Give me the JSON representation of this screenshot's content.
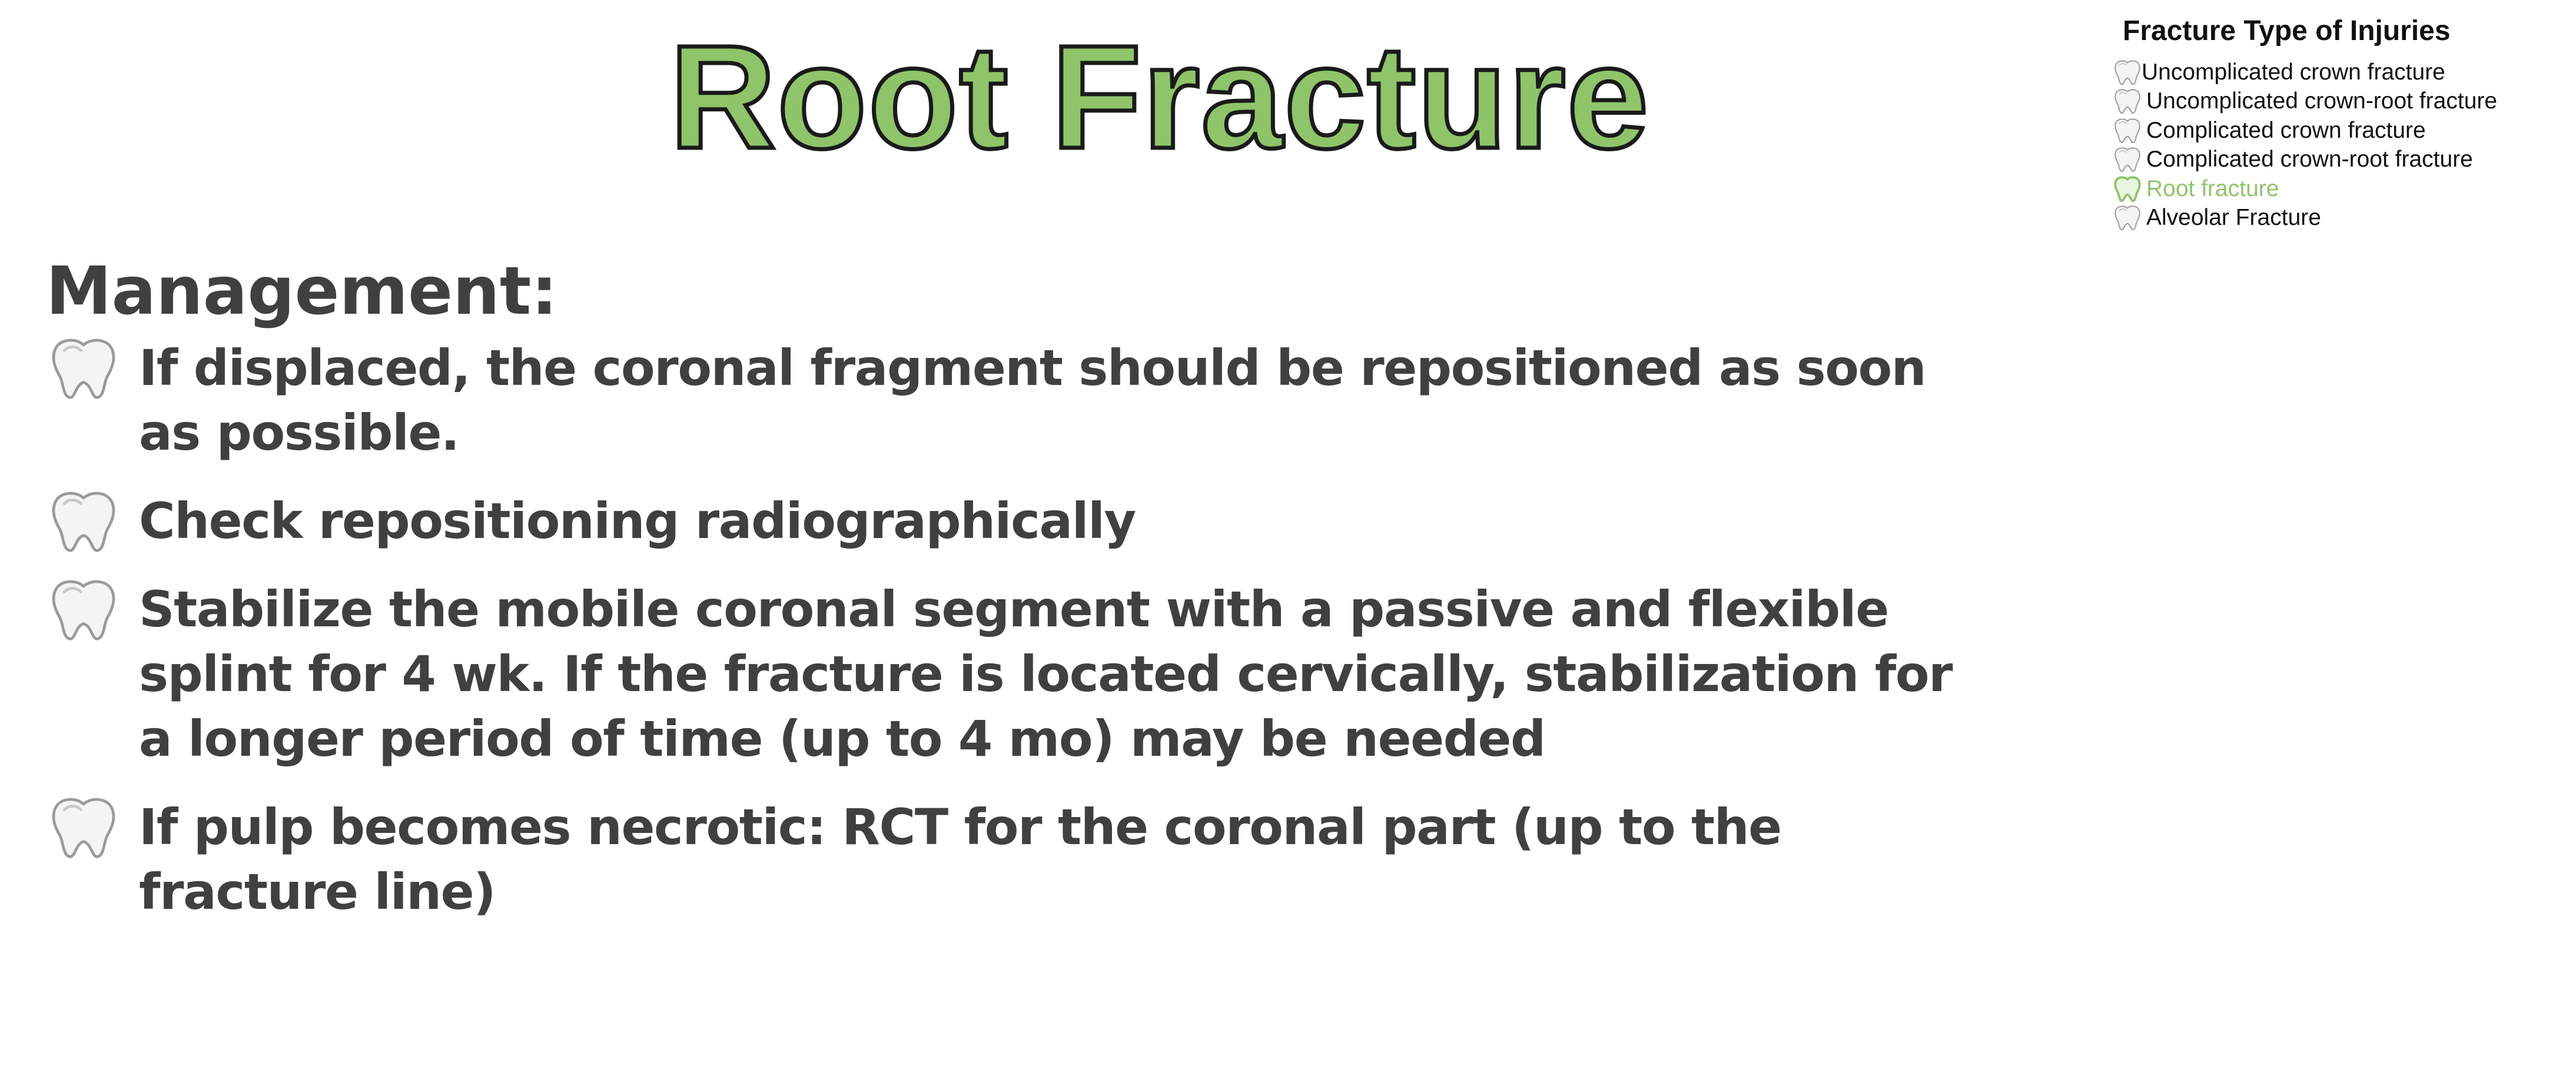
{
  "title": "Root Fracture",
  "legend": {
    "title": "Fracture Type of Injuries",
    "items": [
      {
        "label": "Uncomplicated crown fracture",
        "icon": "tooth-icon",
        "active": false
      },
      {
        "label": "Uncomplicated crown-root fracture",
        "icon": "tooth-icon",
        "active": false
      },
      {
        "label": "Complicated crown fracture",
        "icon": "tooth-icon",
        "active": false
      },
      {
        "label": "Complicated crown-root fracture",
        "icon": "tooth-icon",
        "active": false
      },
      {
        "label": "Root fracture",
        "icon": "tooth-icon",
        "active": true
      },
      {
        "label": "Alveolar Fracture",
        "icon": "tooth-icon",
        "active": false
      }
    ]
  },
  "management": {
    "heading": "Management:",
    "bullets": [
      "If displaced, the coronal fragment should be repositioned as soon as possible.",
      "Check repositioning radiographically",
      "Stabilize the mobile coronal segment with a passive and flexible splint for 4 wk. If the fracture is located cervically, stabilization for a longer period of time (up to 4 mo) may be needed",
      "If pulp becomes necrotic: RCT for the coronal part (up to the fracture line)"
    ]
  },
  "colors": {
    "accent": "#8fc46a",
    "text": "#404040",
    "title_outline": "#1a1a1a"
  }
}
